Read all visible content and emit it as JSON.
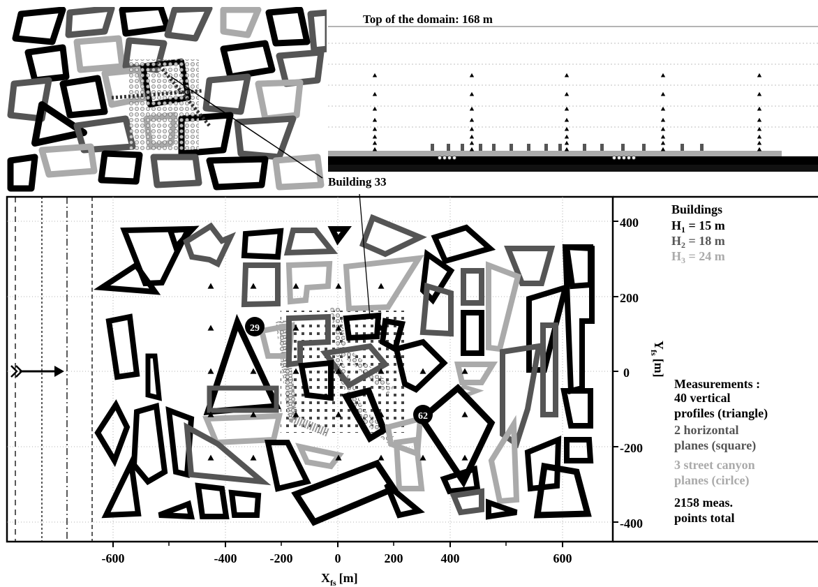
{
  "header": {
    "top_label": "Top of the domain: 168 m",
    "building_callout": "Building 33"
  },
  "axes": {
    "x_label_main": "X",
    "x_label_sub": "fs",
    "x_label_unit": "[m]",
    "y_label_main": "Y",
    "y_label_sub": "fs",
    "y_label_unit": "[m]",
    "x_ticks": [
      "-600",
      "-400",
      "-200",
      "0",
      "200",
      "400",
      "600"
    ],
    "y_ticks": [
      "400",
      "200",
      "0",
      "-200",
      "-400"
    ]
  },
  "markers": {
    "m29": "29",
    "m62": "62"
  },
  "legend": {
    "buildings_title": "Buildings",
    "h1": {
      "prefix": "H",
      "sub": "1",
      "text": " = 15 m",
      "color": "#000000"
    },
    "h2": {
      "prefix": "H",
      "sub": "2",
      "text": " = 18 m",
      "color": "#555555"
    },
    "h3": {
      "prefix": "H",
      "sub": "3",
      "text": " =  24 m",
      "color": "#aaaaaa"
    },
    "measurements_title": "Measurements :",
    "m_vertical_1": "40 vertical",
    "m_vertical_2": "profiles (triangle)",
    "m_horizontal_1": "2 horizontal",
    "m_horizontal_2": "planes (square)",
    "m_canyon_1": "3 street canyon",
    "m_canyon_2": "planes (cirlce)",
    "m_total_1": "2158 meas.",
    "m_total_2": "points total"
  },
  "colors": {
    "black": "#000000",
    "dark_gray": "#555555",
    "light_gray": "#aaaaaa"
  }
}
